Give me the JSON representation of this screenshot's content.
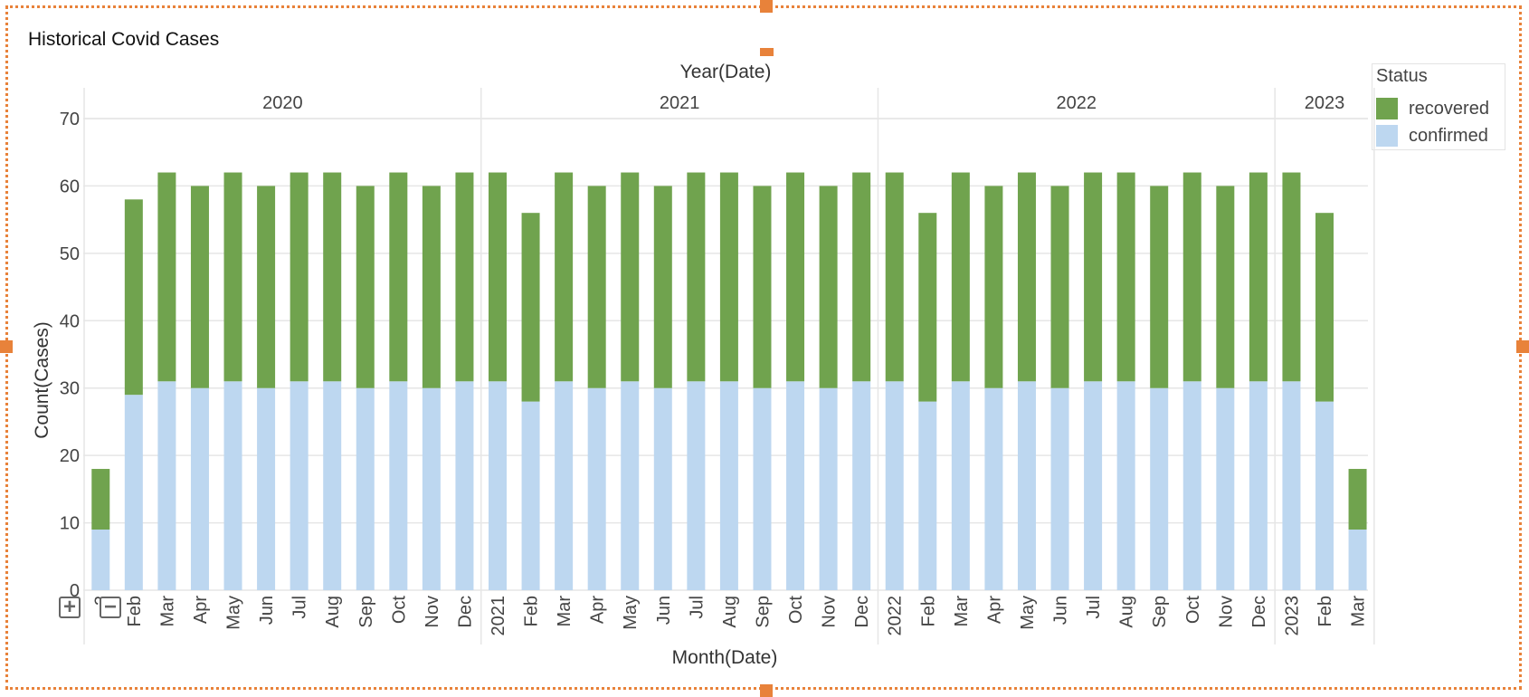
{
  "chart_data": {
    "type": "bar",
    "stacked": true,
    "title": "Historical Covid Cases",
    "xlabel": "Month(Date)",
    "x_group_label": "Year(Date)",
    "ylabel": "Count(Cases)",
    "ylim": [
      0,
      70
    ],
    "yticks": [
      0,
      10,
      20,
      30,
      40,
      50,
      60,
      70
    ],
    "grid": true,
    "legend": {
      "title": "Status",
      "position": "top-right"
    },
    "year_groups": [
      {
        "label": "2020",
        "count": 12
      },
      {
        "label": "2021",
        "count": 12
      },
      {
        "label": "2022",
        "count": 12
      },
      {
        "label": "2023",
        "count": 3
      }
    ],
    "categories": [
      "2",
      "Feb",
      "Mar",
      "Apr",
      "May",
      "Jun",
      "Jul",
      "Aug",
      "Sep",
      "Oct",
      "Nov",
      "Dec",
      "2021",
      "Feb",
      "Mar",
      "Apr",
      "May",
      "Jun",
      "Jul",
      "Aug",
      "Sep",
      "Oct",
      "Nov",
      "Dec",
      "2022",
      "Feb",
      "Mar",
      "Apr",
      "May",
      "Jun",
      "Jul",
      "Aug",
      "Sep",
      "Oct",
      "Nov",
      "Dec",
      "2023",
      "Feb",
      "Mar"
    ],
    "series": [
      {
        "name": "confirmed",
        "color": "#bdd7f0",
        "values": [
          9,
          29,
          31,
          30,
          31,
          30,
          31,
          31,
          30,
          31,
          30,
          31,
          31,
          28,
          31,
          30,
          31,
          30,
          31,
          31,
          30,
          31,
          30,
          31,
          31,
          28,
          31,
          30,
          31,
          30,
          31,
          31,
          30,
          31,
          30,
          31,
          31,
          28,
          9
        ]
      },
      {
        "name": "recovered",
        "color": "#70a34e",
        "values": [
          9,
          29,
          31,
          30,
          31,
          30,
          31,
          31,
          30,
          31,
          30,
          31,
          31,
          28,
          31,
          30,
          31,
          30,
          31,
          31,
          30,
          31,
          30,
          31,
          31,
          28,
          31,
          30,
          31,
          30,
          31,
          31,
          30,
          31,
          30,
          31,
          31,
          28,
          9
        ]
      }
    ]
  },
  "controls": {
    "zoom_in": "+",
    "zoom_out": "−"
  }
}
